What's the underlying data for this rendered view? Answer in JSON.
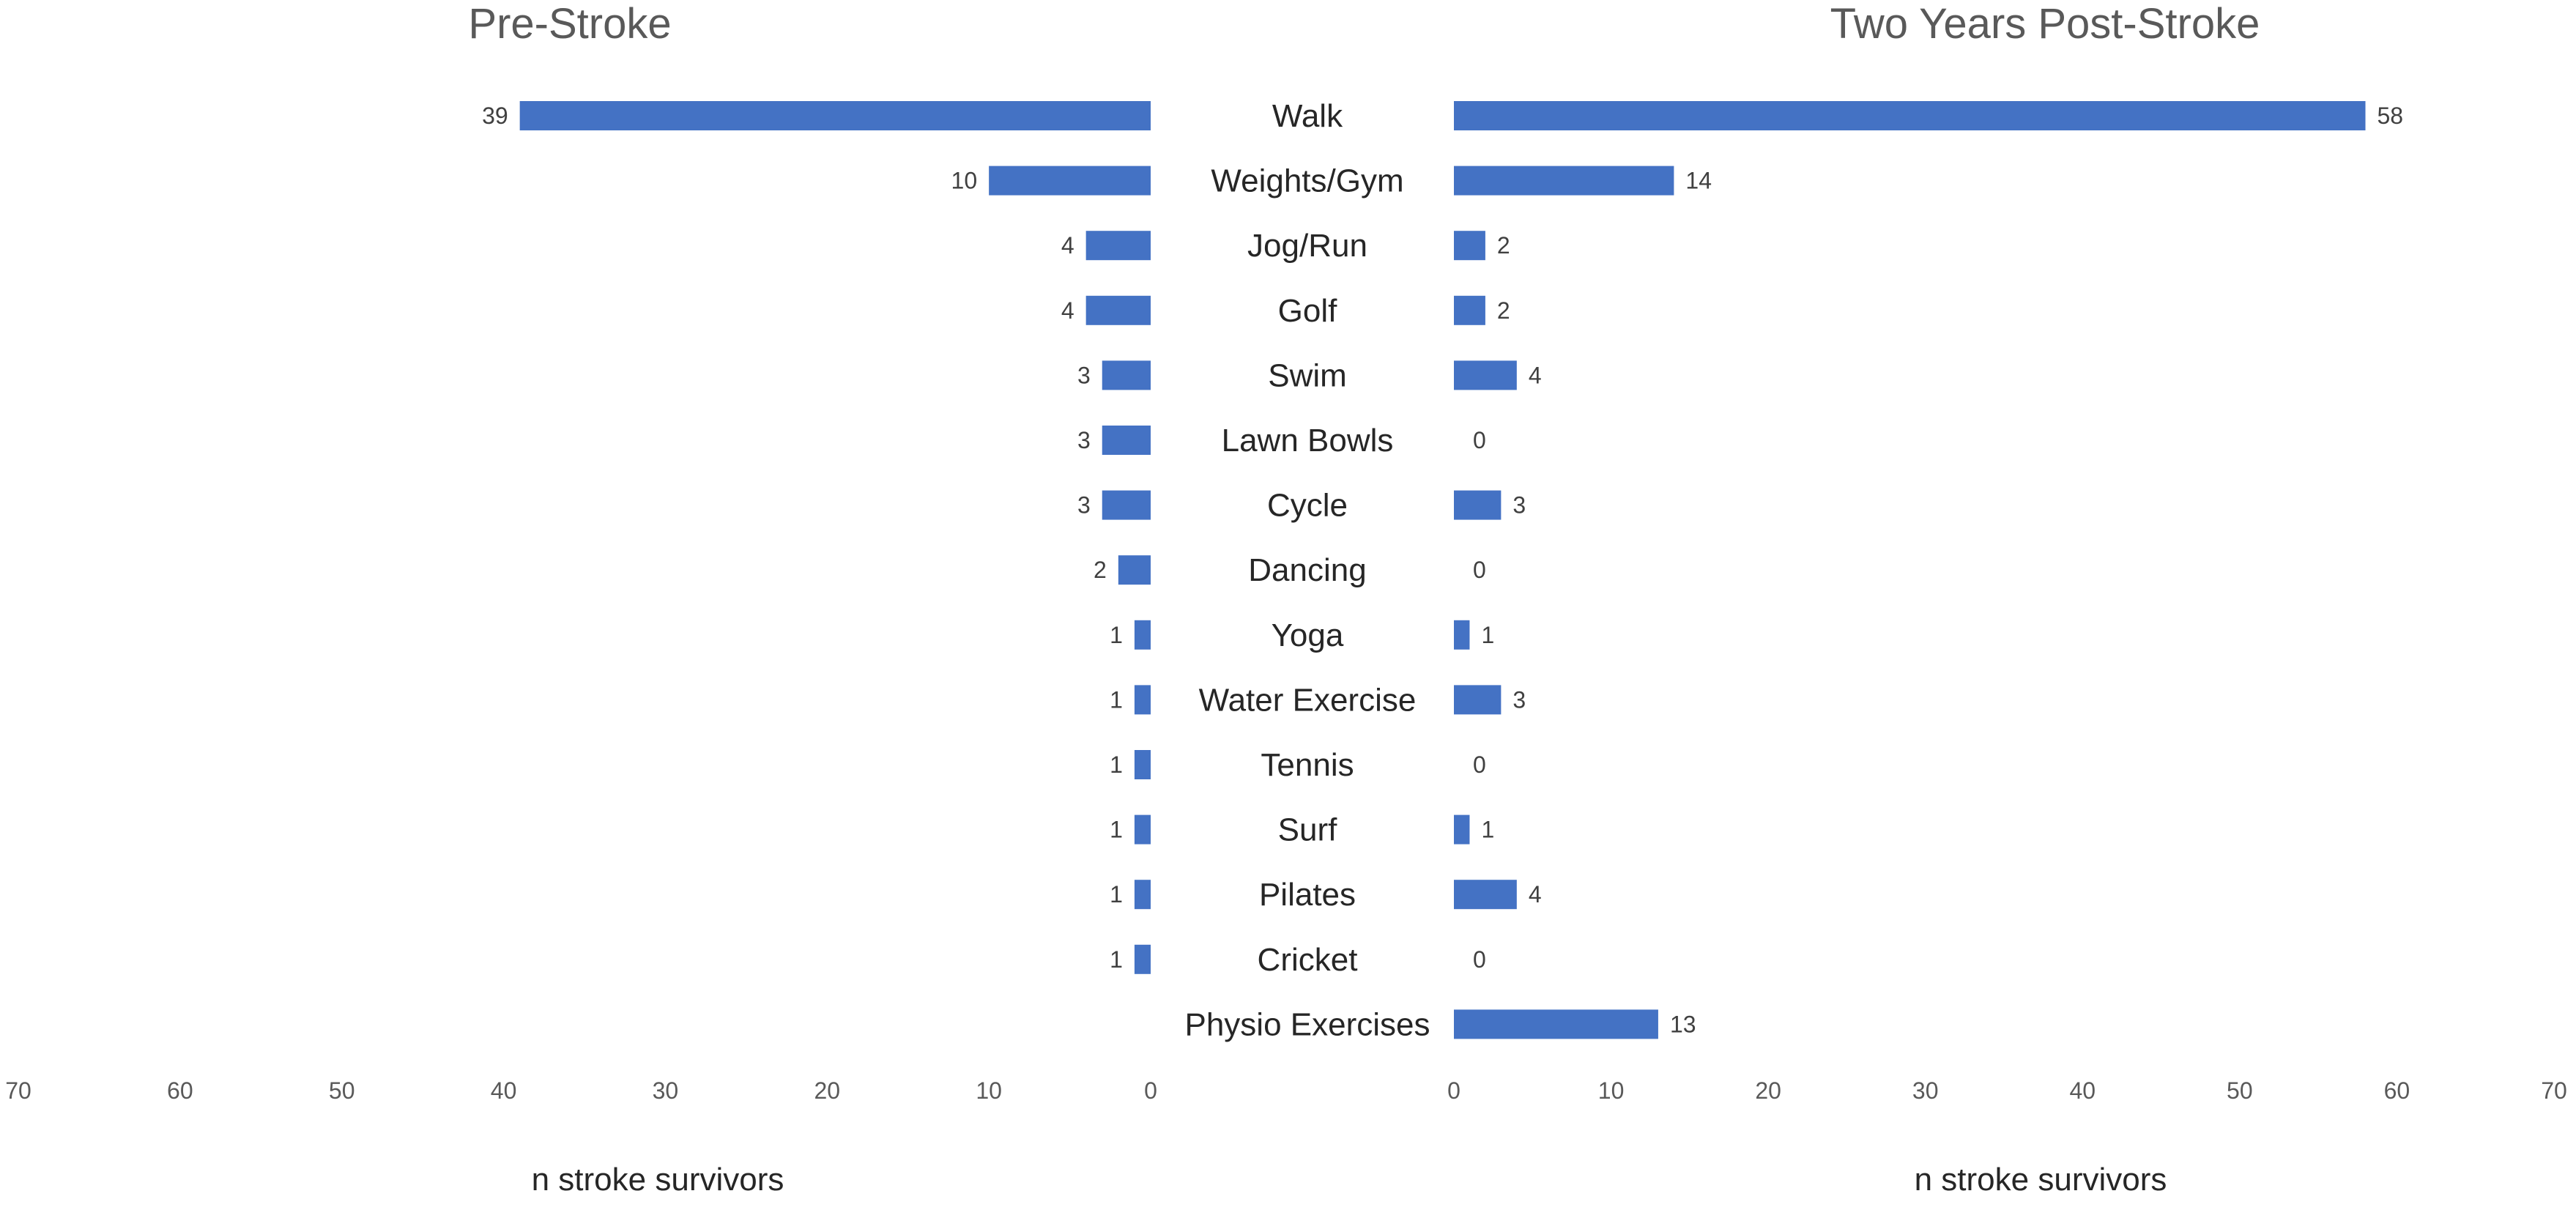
{
  "chart_data": {
    "type": "bar",
    "orientation": "horizontal-butterfly",
    "categories": [
      "Walk",
      "Weights/Gym",
      "Jog/Run",
      "Golf",
      "Swim",
      "Lawn Bowls",
      "Cycle",
      "Dancing",
      "Yoga",
      "Water Exercise",
      "Tennis",
      "Surf",
      "Pilates",
      "Cricket",
      "Physio Exercises"
    ],
    "series": [
      {
        "name": "Pre-Stroke",
        "values": [
          39,
          10,
          4,
          4,
          3,
          3,
          3,
          2,
          1,
          1,
          1,
          1,
          1,
          1,
          null
        ],
        "xlabel": "n stroke survivors",
        "xlim": [
          0,
          70
        ],
        "xticks": [
          70,
          60,
          50,
          40,
          30,
          20,
          10,
          0
        ],
        "direction": "reversed"
      },
      {
        "name": "Two Years Post-Stroke",
        "values": [
          58,
          14,
          2,
          2,
          4,
          0,
          3,
          0,
          1,
          3,
          0,
          1,
          4,
          0,
          13
        ],
        "xlabel": "n stroke survivors",
        "xlim": [
          0,
          70
        ],
        "xticks": [
          0,
          10,
          20,
          30,
          40,
          50,
          60,
          70
        ],
        "direction": "normal"
      }
    ],
    "bar_color": "#4472C4",
    "grid": false,
    "legend": "none"
  }
}
